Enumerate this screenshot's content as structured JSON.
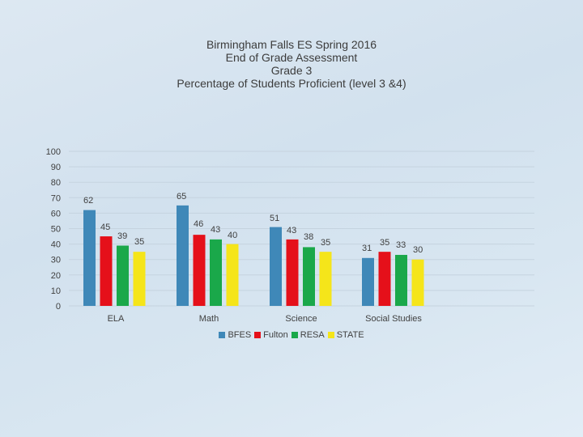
{
  "title": {
    "line1": "Birmingham Falls ES  Spring 2016",
    "line2": "End of Grade Assessment",
    "line3": "Grade 3",
    "line4": "Percentage of Students Proficient (level 3 &4)"
  },
  "colors": {
    "BFES": "#3f88b8",
    "Fulton": "#e5101a",
    "RESA": "#1aa84a",
    "STATE": "#f5e51a",
    "gridline": "#c5d3df",
    "text": "#404040"
  },
  "chart_data": {
    "type": "bar",
    "title": "Birmingham Falls ES  Spring 2016 End of Grade Assessment Grade 3 Percentage of Students Proficient (level 3 &4)",
    "xlabel": "",
    "ylabel": "",
    "ylim": [
      0,
      100
    ],
    "yticks": [
      "0",
      "10",
      "20",
      "30",
      "40",
      "50",
      "60",
      "70",
      "80",
      "90",
      "100"
    ],
    "grid": true,
    "legend_position": "bottom",
    "categories": [
      "ELA",
      "Math",
      "Science",
      "Social Studies"
    ],
    "series": [
      {
        "name": "BFES",
        "values": [
          62,
          65,
          51,
          31
        ]
      },
      {
        "name": "Fulton",
        "values": [
          45,
          46,
          43,
          35
        ]
      },
      {
        "name": "RESA",
        "values": [
          39,
          43,
          38,
          33
        ]
      },
      {
        "name": "STATE",
        "values": [
          35,
          40,
          35,
          30
        ]
      }
    ]
  }
}
